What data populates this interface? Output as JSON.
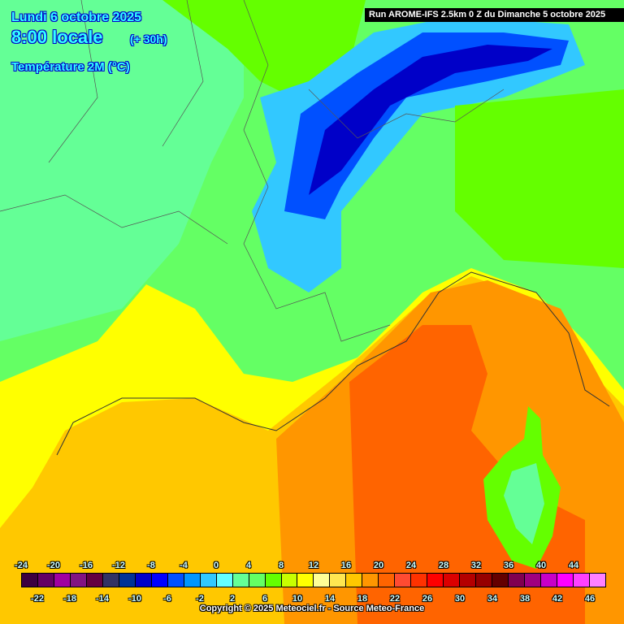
{
  "header": {
    "date": "Lundi 6 octobre 2025",
    "time": "8:00 locale",
    "lead": "(+ 30h)",
    "parameter": "Température 2M (°C)",
    "run": "Run AROME-IFS 2.5km 0 Z du Dimanche 5 octobre 2025"
  },
  "legend": {
    "colors": [
      "#3c0040",
      "#640064",
      "#a000a0",
      "#821482",
      "#640040",
      "#323264",
      "#003296",
      "#0000c8",
      "#0000ff",
      "#0050ff",
      "#0096ff",
      "#32c8ff",
      "#64ffff",
      "#64ff96",
      "#64ff64",
      "#64ff00",
      "#c8ff00",
      "#ffff00",
      "#ffff96",
      "#ffe650",
      "#ffc800",
      "#ff9600",
      "#ff6400",
      "#ff4b32",
      "#ff3200",
      "#ff0000",
      "#dc0000",
      "#b40000",
      "#960000",
      "#640000",
      "#800050",
      "#a00080",
      "#c800c8",
      "#ff00ff",
      "#ff40ff",
      "#ff80ff"
    ],
    "top_labels": [
      "-24",
      "-20",
      "-16",
      "-12",
      "-8",
      "-4",
      "0",
      "4",
      "8",
      "12",
      "16",
      "20",
      "24",
      "28",
      "32",
      "36",
      "40",
      "44"
    ],
    "bottom_labels": [
      "-22",
      "-18",
      "-14",
      "-10",
      "-6",
      "-2",
      "2",
      "6",
      "10",
      "14",
      "18",
      "22",
      "26",
      "30",
      "34",
      "38",
      "42",
      "46"
    ]
  },
  "copyright": "Copyright © 2025 Meteociel.fr - Source Meteo-France"
}
